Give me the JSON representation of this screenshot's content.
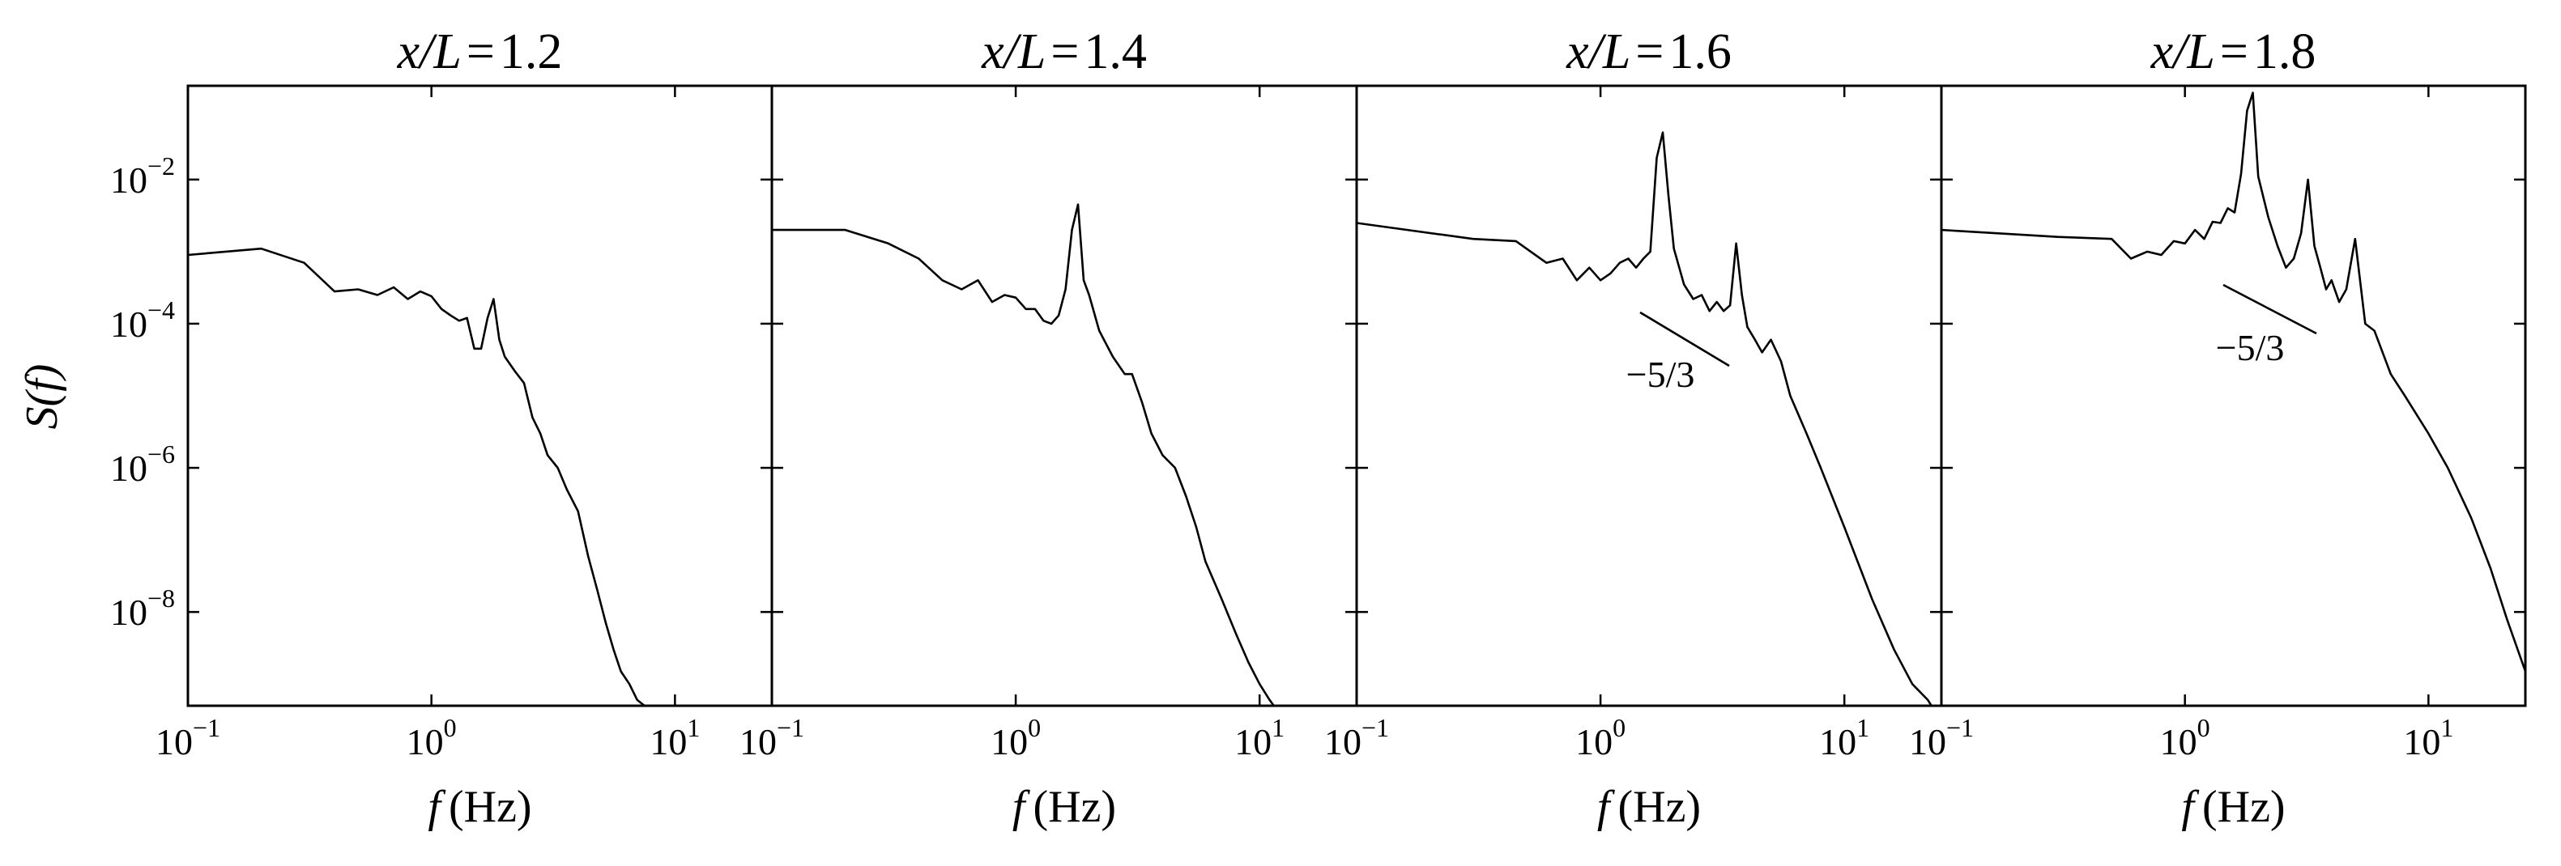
{
  "chart_data": [
    {
      "type": "line",
      "title_prefix": "x/L",
      "title_value": "1.2",
      "xlabel_var": "f",
      "xlabel_unit": "(Hz)",
      "ylabel": "S(f)",
      "xscale": "log",
      "yscale": "log",
      "xlim": [
        0.1,
        25
      ],
      "ylim": [
        5e-10,
        0.2
      ],
      "x_tick_labels": [
        {
          "x": 0.1,
          "base": "10",
          "exp": "−1"
        },
        {
          "x": 1,
          "base": "10",
          "exp": "0"
        },
        {
          "x": 10,
          "base": "10",
          "exp": "1"
        }
      ],
      "y_tick_labels": [
        {
          "y": 0.01,
          "base": "10",
          "exp": "−2"
        },
        {
          "y": 0.0001,
          "base": "10",
          "exp": "−4"
        },
        {
          "y": 1e-06,
          "base": "10",
          "exp": "−6"
        },
        {
          "y": 1e-08,
          "base": "10",
          "exp": "−8"
        }
      ],
      "series": [
        {
          "x": [
            0.1,
            0.2,
            0.3,
            0.4,
            0.5,
            0.6,
            0.7,
            0.8,
            0.9,
            1.0,
            1.1,
            1.2,
            1.3,
            1.4,
            1.5,
            1.6,
            1.7,
            1.8,
            1.9,
            2.0,
            2.2,
            2.4,
            2.6,
            2.8,
            3.0,
            3.3,
            3.6,
            4.0,
            4.4,
            4.8,
            5.2,
            5.6,
            6.0,
            6.5,
            7.0,
            7.5,
            8.0,
            8.5
          ],
          "y": [
            0.0009,
            0.0011,
            0.0007,
            0.00028,
            0.0003,
            0.00025,
            0.00032,
            0.00022,
            0.00028,
            0.00024,
            0.00016,
            0.00013,
            0.00011,
            0.00012,
            4.5e-05,
            4.5e-05,
            0.00012,
            0.00022,
            6e-05,
            3.5e-05,
            2.2e-05,
            1.5e-05,
            5e-06,
            3e-06,
            1.5e-06,
            1e-06,
            5e-07,
            2.5e-07,
            6e-08,
            2e-08,
            7e-09,
            3e-09,
            1.5e-09,
            1e-09,
            6e-10,
            5e-10,
            4e-10,
            3e-10
          ]
        }
      ]
    },
    {
      "type": "line",
      "title_prefix": "x/L",
      "title_value": "1.4",
      "xlabel_var": "f",
      "xlabel_unit": "(Hz)",
      "xscale": "log",
      "yscale": "log",
      "xlim": [
        0.1,
        25
      ],
      "ylim": [
        5e-10,
        0.2
      ],
      "x_tick_labels": [
        {
          "x": 0.1,
          "base": "10",
          "exp": "−1"
        },
        {
          "x": 1,
          "base": "10",
          "exp": "0"
        },
        {
          "x": 10,
          "base": "10",
          "exp": "1"
        }
      ],
      "series": [
        {
          "x": [
            0.1,
            0.2,
            0.3,
            0.4,
            0.5,
            0.6,
            0.7,
            0.8,
            0.9,
            1.0,
            1.1,
            1.2,
            1.3,
            1.4,
            1.5,
            1.6,
            1.7,
            1.8,
            1.9,
            2.0,
            2.2,
            2.5,
            2.8,
            3.0,
            3.3,
            3.6,
            4.0,
            4.5,
            5.0,
            5.5,
            6.0,
            7.0,
            8.0,
            9.0,
            10.0,
            11.0,
            12.0,
            13.0
          ],
          "y": [
            0.002,
            0.002,
            0.0013,
            0.0008,
            0.0004,
            0.0003,
            0.0004,
            0.0002,
            0.00025,
            0.00023,
            0.00016,
            0.00016,
            0.00011,
            0.0001,
            0.00013,
            0.0003,
            0.002,
            0.0045,
            0.0004,
            0.00025,
            8e-05,
            3.5e-05,
            2e-05,
            2e-05,
            8e-06,
            3e-06,
            1.5e-06,
            1e-06,
            4e-07,
            1.5e-07,
            5e-08,
            1.5e-08,
            5e-09,
            2e-09,
            1e-09,
            6e-10,
            4e-10,
            3e-10
          ]
        }
      ]
    },
    {
      "type": "line",
      "title_prefix": "x/L",
      "title_value": "1.6",
      "xlabel_var": "f",
      "xlabel_unit": "(Hz)",
      "xscale": "log",
      "yscale": "log",
      "xlim": [
        0.1,
        25
      ],
      "ylim": [
        5e-10,
        0.2
      ],
      "x_tick_labels": [
        {
          "x": 0.1,
          "base": "10",
          "exp": "−1"
        },
        {
          "x": 1,
          "base": "10",
          "exp": "0"
        },
        {
          "x": 10,
          "base": "10",
          "exp": "1"
        }
      ],
      "annotations": [
        {
          "text": "−5/3"
        }
      ],
      "series": [
        {
          "x": [
            0.1,
            0.3,
            0.45,
            0.6,
            0.7,
            0.8,
            0.9,
            1.0,
            1.1,
            1.2,
            1.3,
            1.4,
            1.5,
            1.6,
            1.7,
            1.8,
            1.9,
            2.0,
            2.2,
            2.4,
            2.6,
            2.8,
            3.0,
            3.2,
            3.4,
            3.6,
            3.8,
            4.0,
            4.3,
            4.6,
            5.0,
            5.5,
            6.0,
            7.0,
            8.0,
            10.0,
            13.0,
            16.0,
            19.0,
            22.0,
            25.0
          ],
          "y": [
            0.0025,
            0.0015,
            0.0014,
            0.0007,
            0.0008,
            0.0004,
            0.0006,
            0.0004,
            0.0005,
            0.0007,
            0.0008,
            0.0006,
            0.0008,
            0.001,
            0.02,
            0.045,
            0.006,
            0.0011,
            0.00035,
            0.00022,
            0.00025,
            0.00015,
            0.0002,
            0.00015,
            0.00018,
            0.0013,
            0.00025,
            9e-05,
            6e-05,
            4e-05,
            6e-05,
            3e-05,
            1e-05,
            3e-06,
            1e-06,
            1.5e-07,
            1.5e-08,
            3e-09,
            1e-09,
            6e-10,
            3e-10
          ]
        }
      ]
    },
    {
      "type": "line",
      "title_prefix": "x/L",
      "title_value": "1.8",
      "xlabel_var": "f",
      "xlabel_unit": "(Hz)",
      "xscale": "log",
      "yscale": "log",
      "xlim": [
        0.1,
        25
      ],
      "ylim": [
        5e-10,
        0.2
      ],
      "x_tick_labels": [
        {
          "x": 0.1,
          "base": "10",
          "exp": "−1"
        },
        {
          "x": 1,
          "base": "10",
          "exp": "0"
        },
        {
          "x": 10,
          "base": "10",
          "exp": "1"
        }
      ],
      "annotations": [
        {
          "text": "−5/3"
        }
      ],
      "series": [
        {
          "x": [
            0.1,
            0.3,
            0.5,
            0.6,
            0.7,
            0.8,
            0.9,
            1.0,
            1.1,
            1.2,
            1.3,
            1.4,
            1.5,
            1.6,
            1.7,
            1.8,
            1.9,
            2.0,
            2.2,
            2.4,
            2.6,
            2.8,
            3.0,
            3.2,
            3.4,
            3.6,
            3.8,
            4.0,
            4.3,
            4.6,
            5.0,
            5.5,
            6.0,
            7.0,
            8.0,
            10.0,
            12.0,
            15.0,
            18.0,
            21.0,
            25.0
          ],
          "y": [
            0.002,
            0.0016,
            0.0015,
            0.0008,
            0.001,
            0.0009,
            0.0014,
            0.0013,
            0.002,
            0.0015,
            0.0026,
            0.0025,
            0.004,
            0.0035,
            0.012,
            0.09,
            0.16,
            0.011,
            0.003,
            0.0012,
            0.0006,
            0.0008,
            0.0018,
            0.01,
            0.0012,
            0.0006,
            0.0003,
            0.0004,
            0.0002,
            0.0003,
            0.0015,
            0.0001,
            8e-05,
            2e-05,
            1e-05,
            3e-06,
            1e-06,
            2e-07,
            4e-08,
            8e-09,
            1.5e-09
          ]
        }
      ]
    }
  ]
}
